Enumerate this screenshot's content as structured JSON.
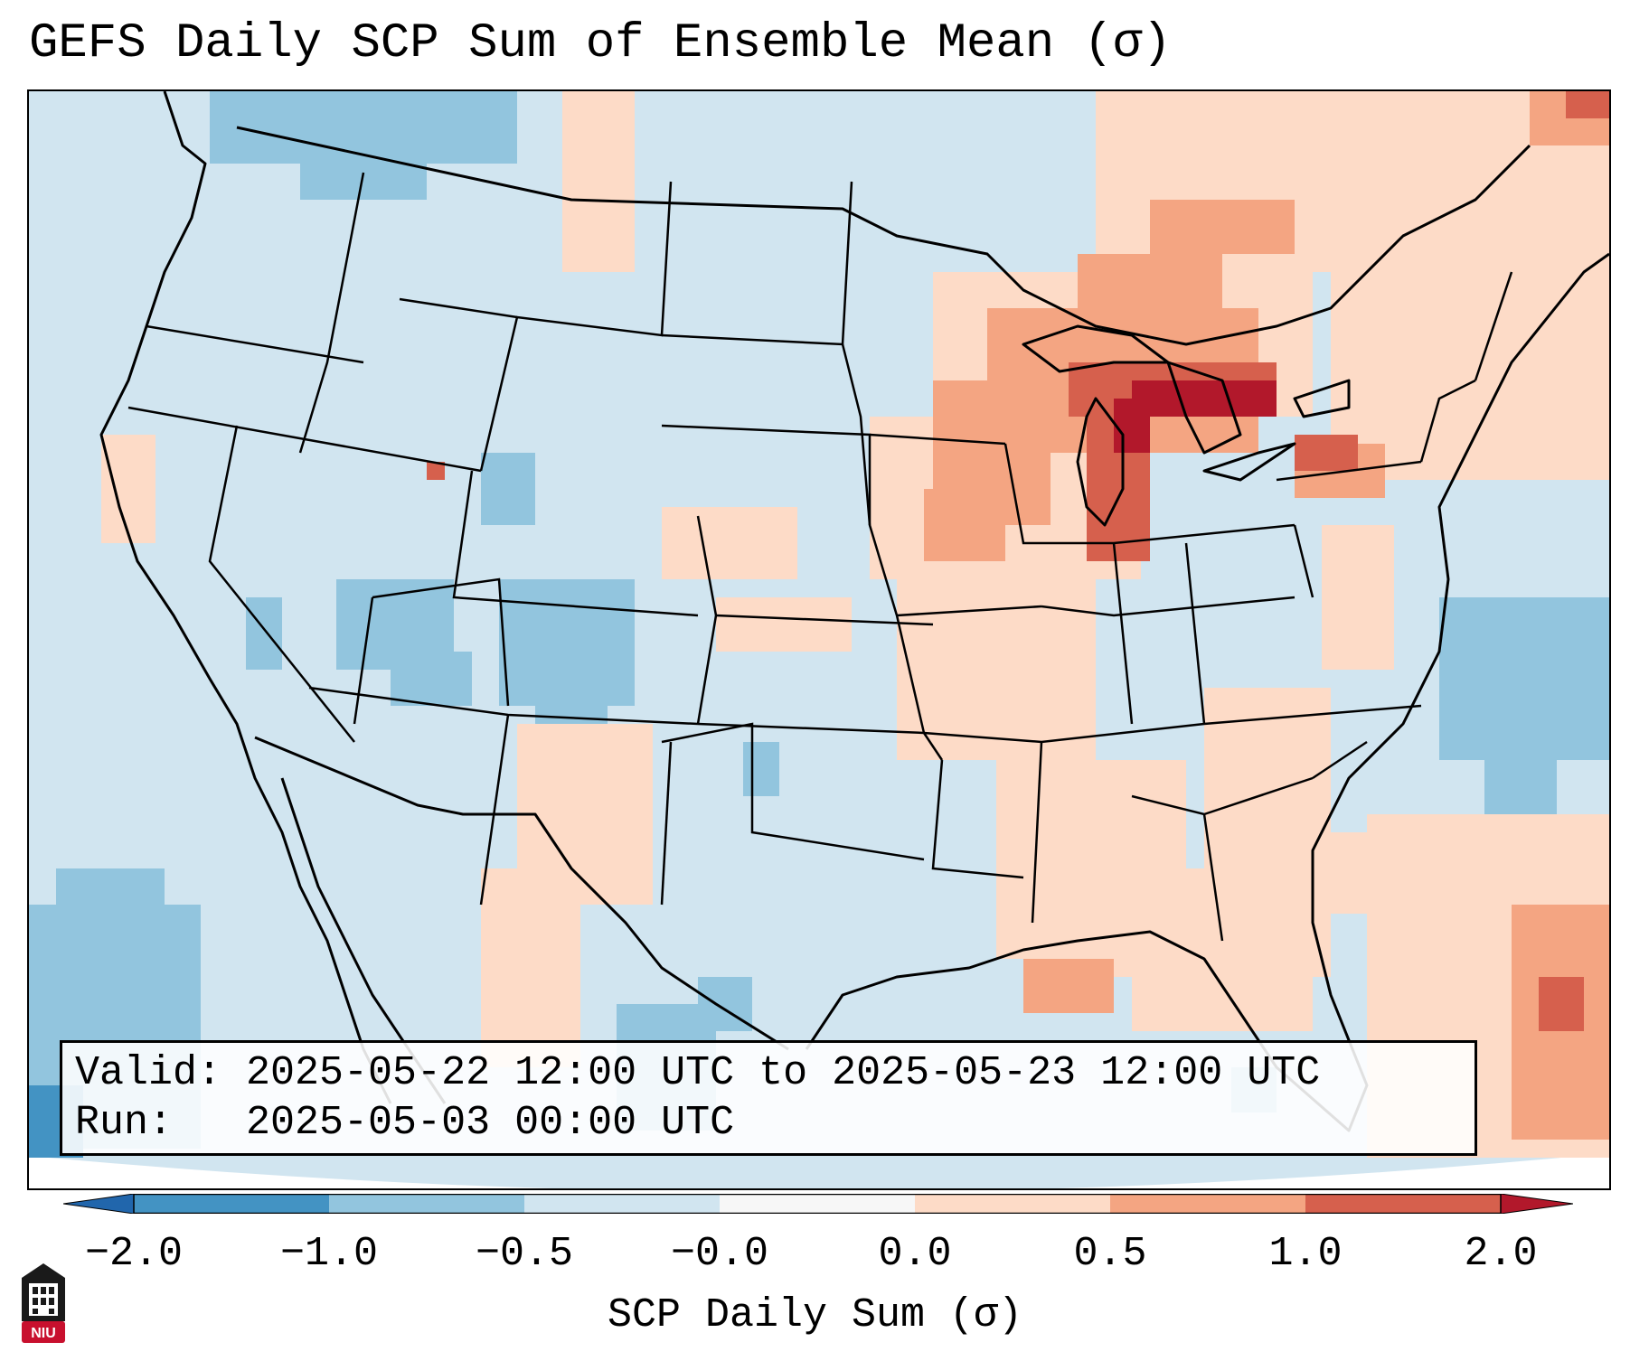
{
  "title": "GEFS Daily SCP Sum of Ensemble Mean (σ)",
  "info": {
    "valid_line": "Valid: 2025-05-22 12:00 UTC to 2025-05-23 12:00 UTC",
    "run_line": "Run:   2025-05-03 00:00 UTC"
  },
  "colorbar": {
    "label": "SCP Daily Sum (σ)",
    "ticks": [
      "−2.0",
      "−1.0",
      "−0.5",
      "−0.0",
      "0.0",
      "0.5",
      "1.0",
      "2.0"
    ],
    "colors": [
      "#2166ac",
      "#4393c3",
      "#92c5de",
      "#d1e5f0",
      "#f7f7f7",
      "#fddbc7",
      "#f4a582",
      "#d6604d",
      "#b2182b"
    ],
    "extend": "both"
  },
  "map": {
    "projection": "conic CONUS",
    "colors": {
      "background_value": "#d1e5f0",
      "outside": "#ffffff",
      "borders": "#000000"
    },
    "anomaly_regions": [
      {
        "name": "Great Lakes",
        "level": "1.0 to 2.0"
      },
      {
        "name": "Lake Michigan",
        "level": "1.0 to 2.0"
      },
      {
        "name": "Upper Midwest",
        "level": "0.5 to 1.0"
      },
      {
        "name": "Mississippi Valley",
        "level": "0.0 to 0.5"
      },
      {
        "name": "Gulf Coast",
        "level": "0.0 to 0.5"
      },
      {
        "name": "Western Atlantic",
        "level": "0.5 to 1.0"
      },
      {
        "name": "Colorado Plateau",
        "level": "-1.0 to -0.5"
      },
      {
        "name": "Northern Rockies",
        "level": "-1.0 to -0.5"
      },
      {
        "name": "Texas",
        "level": "-1.0 to -0.5"
      },
      {
        "name": "Eastern Pacific",
        "level": "-1.0 to -0.5"
      }
    ]
  },
  "logo": {
    "text": "NIU"
  }
}
